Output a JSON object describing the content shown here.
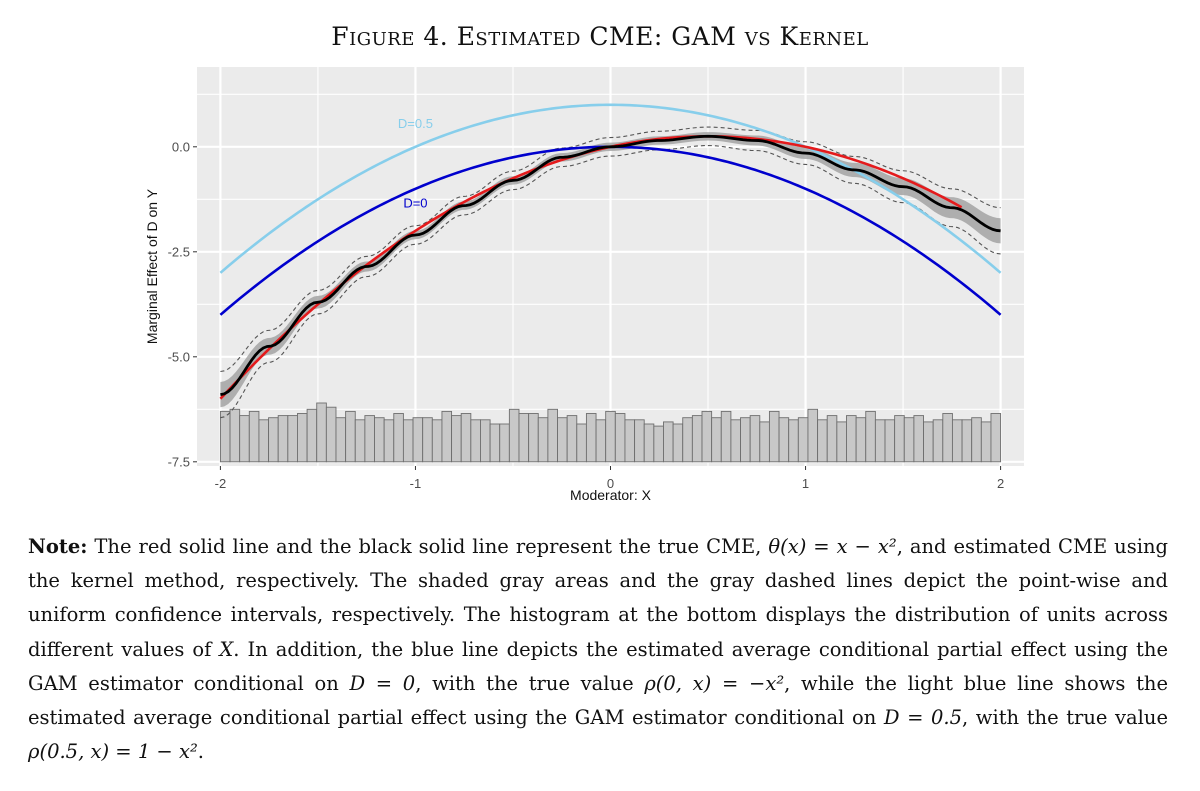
{
  "figure": {
    "label": "Figure 4.",
    "title": "Estimated CME: GAM vs Kernel"
  },
  "chart_data": {
    "type": "line",
    "xlabel": "Moderator: X",
    "ylabel": "Marginal Effect of D on Y",
    "xlim": [
      -2.12,
      2.12
    ],
    "ylim": [
      -7.6,
      1.9
    ],
    "x_ticks": [
      -2,
      -1,
      0,
      1,
      2
    ],
    "x_tick_labels": [
      "-2",
      "-1",
      "0",
      "1",
      "2"
    ],
    "y_ticks": [
      0.0,
      -2.5,
      -5.0,
      -7.5
    ],
    "y_tick_labels": [
      "0.0",
      "-2.5",
      "-5.0",
      "-7.5"
    ],
    "grid": true,
    "series": [
      {
        "name": "D=0.5",
        "color": "#87ceeb",
        "function": "1 - x^2",
        "x_range": [
          -2,
          2
        ]
      },
      {
        "name": "D=0",
        "color": "#0000cd",
        "function": "-x^2",
        "x_range": [
          -2,
          2
        ]
      },
      {
        "name": "True CME",
        "color": "#e41a1c",
        "function": "x - x^2",
        "x_range": [
          -2,
          1.8
        ]
      },
      {
        "name": "Kernel estimate",
        "color": "#000000",
        "x": [
          -2.0,
          -1.75,
          -1.5,
          -1.25,
          -1.0,
          -0.75,
          -0.5,
          -0.25,
          0.0,
          0.25,
          0.5,
          0.75,
          1.0,
          1.25,
          1.5,
          1.75,
          2.0
        ],
        "y": [
          -5.9,
          -4.75,
          -3.7,
          -2.85,
          -2.1,
          -1.4,
          -0.8,
          -0.25,
          0.0,
          0.15,
          0.25,
          0.15,
          -0.15,
          -0.55,
          -0.95,
          -1.45,
          -2.0
        ],
        "pointwise_ci_halfwidth": [
          0.3,
          0.2,
          0.15,
          0.12,
          0.1,
          0.1,
          0.1,
          0.1,
          0.1,
          0.1,
          0.1,
          0.12,
          0.14,
          0.17,
          0.2,
          0.25,
          0.3
        ],
        "uniform_ci_halfwidth": [
          0.55,
          0.38,
          0.28,
          0.24,
          0.22,
          0.22,
          0.22,
          0.22,
          0.22,
          0.22,
          0.22,
          0.24,
          0.27,
          0.32,
          0.38,
          0.45,
          0.55
        ]
      }
    ],
    "annotations": [
      {
        "text": "D=0.5",
        "x": -1.0,
        "y": 0.45,
        "color": "#87ceeb"
      },
      {
        "text": "D=0",
        "x": -1.0,
        "y": -1.45,
        "color": "#0000cd"
      }
    ],
    "histogram": {
      "x_range": [
        -2,
        2
      ],
      "baseline": -7.5,
      "heights": [
        1.2,
        1.25,
        1.1,
        1.2,
        1.0,
        1.05,
        1.1,
        1.1,
        1.15,
        1.25,
        1.4,
        1.3,
        1.05,
        1.2,
        1.0,
        1.1,
        1.05,
        1.0,
        1.15,
        1.0,
        1.05,
        1.05,
        1.0,
        1.2,
        1.1,
        1.15,
        1.0,
        1.0,
        0.9,
        0.9,
        1.25,
        1.15,
        1.15,
        1.05,
        1.25,
        1.05,
        1.1,
        0.9,
        1.15,
        1.0,
        1.2,
        1.15,
        1.0,
        1.0,
        0.9,
        0.85,
        0.95,
        0.9,
        1.05,
        1.1,
        1.2,
        1.05,
        1.2,
        1.0,
        1.05,
        1.1,
        0.95,
        1.2,
        1.05,
        1.0,
        1.05,
        1.25,
        1.0,
        1.1,
        0.95,
        1.1,
        1.05,
        1.2,
        1.0,
        1.0,
        1.1,
        1.05,
        1.1,
        0.95,
        1.0,
        1.15,
        1.0,
        1.0,
        1.05,
        0.95,
        1.15
      ]
    }
  },
  "note": {
    "lead": "Note:",
    "s1": " The red solid line and the black solid line represent the true CME, ",
    "f1": "θ(x) = x − x²",
    "s2": ", and estimated CME using the kernel method, respectively. The shaded gray areas and the gray dashed lines depict the point-wise and uniform confidence intervals, respectively. The histogram at the bottom displays the distribution of units across different values of ",
    "f2": "X",
    "s3": ". In addition, the blue line depicts the estimated average conditional partial effect using the GAM estimator conditional on ",
    "f3": "D = 0",
    "s4": ", with the true value ",
    "f4": "ρ(0, x) = −x²",
    "s5": ", while the light blue line shows the estimated average conditional partial effect using the GAM estimator conditional on ",
    "f5": "D = 0.5",
    "s6": ", with the true value ",
    "f6": "ρ(0.5, x) = 1 − x²",
    "s7": "."
  }
}
